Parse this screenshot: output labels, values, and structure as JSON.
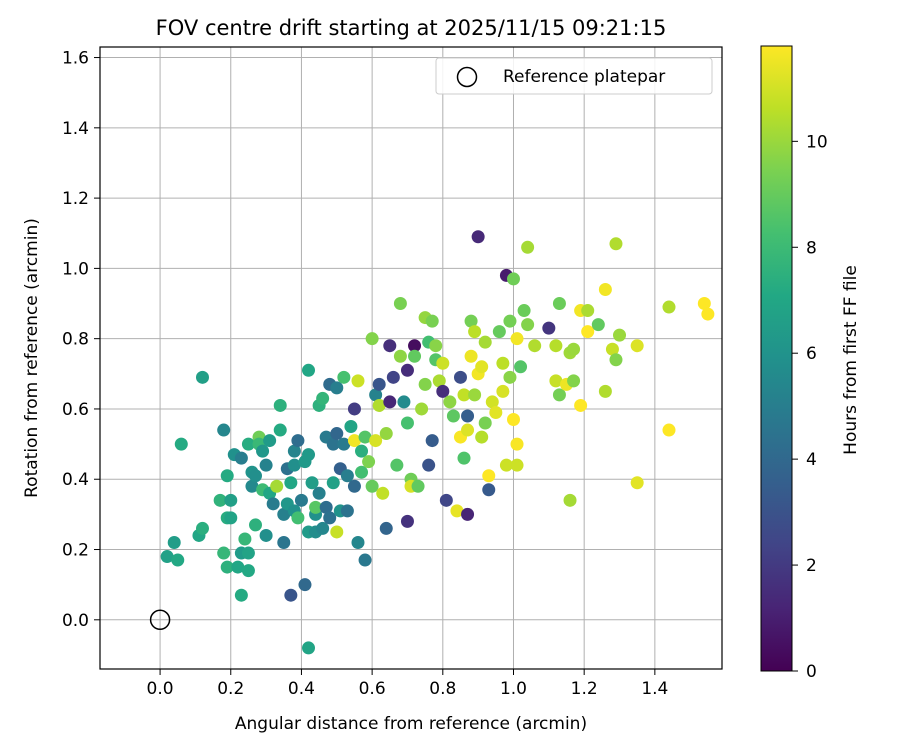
{
  "chart_data": {
    "type": "scatter",
    "title": "FOV centre drift starting at 2025/11/15 09:21:15",
    "xlabel": "Angular distance from reference (arcmin)",
    "ylabel": "Rotation from reference (arcmin)",
    "xlim": [
      -0.17,
      1.59
    ],
    "ylim": [
      -0.14,
      1.63
    ],
    "grid": true,
    "xticks": [
      0.0,
      0.2,
      0.4,
      0.6,
      0.8,
      1.0,
      1.2,
      1.4
    ],
    "xtick_labels": [
      "0.0",
      "0.2",
      "0.4",
      "0.6",
      "0.8",
      "1.0",
      "1.2",
      "1.4"
    ],
    "yticks": [
      0.0,
      0.2,
      0.4,
      0.6,
      0.8,
      1.0,
      1.2,
      1.4,
      1.6
    ],
    "ytick_labels": [
      "0.0",
      "0.2",
      "0.4",
      "0.6",
      "0.8",
      "1.0",
      "1.2",
      "1.4",
      "1.6"
    ],
    "legend": {
      "placement": "top-right",
      "entries": [
        {
          "label": "Reference platepar",
          "marker": "open-circle",
          "color": "#000000"
        }
      ]
    },
    "reference_point": {
      "x": 0.0,
      "y": 0.0
    },
    "colorbar": {
      "label": "Hours from first FF file",
      "colormap": "viridis",
      "range": [
        0,
        11.8
      ],
      "ticks": [
        0,
        2,
        4,
        6,
        8,
        10
      ],
      "tick_labels": [
        "0",
        "2",
        "4",
        "6",
        "8",
        "10"
      ]
    },
    "points": [
      {
        "x": 0.02,
        "y": 0.18,
        "h": 6.7
      },
      {
        "x": 0.04,
        "y": 0.22,
        "h": 6.5
      },
      {
        "x": 0.05,
        "y": 0.17,
        "h": 7.1
      },
      {
        "x": 0.06,
        "y": 0.5,
        "h": 7.2
      },
      {
        "x": 0.12,
        "y": 0.69,
        "h": 6.6
      },
      {
        "x": 0.11,
        "y": 0.24,
        "h": 7.0
      },
      {
        "x": 0.12,
        "y": 0.26,
        "h": 7.4
      },
      {
        "x": 0.17,
        "y": 0.34,
        "h": 7.6
      },
      {
        "x": 0.18,
        "y": 0.19,
        "h": 7.8
      },
      {
        "x": 0.19,
        "y": 0.15,
        "h": 7.5
      },
      {
        "x": 0.19,
        "y": 0.29,
        "h": 7.3
      },
      {
        "x": 0.19,
        "y": 0.41,
        "h": 7.2
      },
      {
        "x": 0.18,
        "y": 0.54,
        "h": 5.4
      },
      {
        "x": 0.2,
        "y": 0.34,
        "h": 6.6
      },
      {
        "x": 0.2,
        "y": 0.29,
        "h": 6.8
      },
      {
        "x": 0.21,
        "y": 0.47,
        "h": 5.9
      },
      {
        "x": 0.22,
        "y": 0.15,
        "h": 7.0
      },
      {
        "x": 0.23,
        "y": 0.46,
        "h": 5.0
      },
      {
        "x": 0.23,
        "y": 0.07,
        "h": 7.2
      },
      {
        "x": 0.23,
        "y": 0.19,
        "h": 6.4
      },
      {
        "x": 0.24,
        "y": 0.23,
        "h": 7.8
      },
      {
        "x": 0.25,
        "y": 0.19,
        "h": 6.8
      },
      {
        "x": 0.25,
        "y": 0.5,
        "h": 7.3
      },
      {
        "x": 0.25,
        "y": 0.14,
        "h": 7.1
      },
      {
        "x": 0.26,
        "y": 0.38,
        "h": 5.5
      },
      {
        "x": 0.26,
        "y": 0.42,
        "h": 6.0
      },
      {
        "x": 0.27,
        "y": 0.27,
        "h": 7.5
      },
      {
        "x": 0.27,
        "y": 0.41,
        "h": 5.8
      },
      {
        "x": 0.28,
        "y": 0.52,
        "h": 9.2
      },
      {
        "x": 0.28,
        "y": 0.5,
        "h": 7.9
      },
      {
        "x": 0.29,
        "y": 0.37,
        "h": 8.0
      },
      {
        "x": 0.29,
        "y": 0.48,
        "h": 6.2
      },
      {
        "x": 0.3,
        "y": 0.24,
        "h": 5.8
      },
      {
        "x": 0.3,
        "y": 0.44,
        "h": 5.2
      },
      {
        "x": 0.31,
        "y": 0.36,
        "h": 7.0
      },
      {
        "x": 0.31,
        "y": 0.51,
        "h": 6.4
      },
      {
        "x": 0.32,
        "y": 0.33,
        "h": 4.9
      },
      {
        "x": 0.33,
        "y": 0.38,
        "h": 10.2
      },
      {
        "x": 0.34,
        "y": 0.61,
        "h": 7.5
      },
      {
        "x": 0.34,
        "y": 0.54,
        "h": 7.2
      },
      {
        "x": 0.35,
        "y": 0.3,
        "h": 5.1
      },
      {
        "x": 0.35,
        "y": 0.22,
        "h": 4.6
      },
      {
        "x": 0.36,
        "y": 0.33,
        "h": 6.2
      },
      {
        "x": 0.36,
        "y": 0.43,
        "h": 4.4
      },
      {
        "x": 0.37,
        "y": 0.07,
        "h": 3.1
      },
      {
        "x": 0.37,
        "y": 0.39,
        "h": 7.0
      },
      {
        "x": 0.38,
        "y": 0.48,
        "h": 5.3
      },
      {
        "x": 0.38,
        "y": 0.44,
        "h": 5.8
      },
      {
        "x": 0.38,
        "y": 0.31,
        "h": 5.9
      },
      {
        "x": 0.39,
        "y": 0.29,
        "h": 8.2
      },
      {
        "x": 0.39,
        "y": 0.51,
        "h": 4.2
      },
      {
        "x": 0.4,
        "y": 0.34,
        "h": 4.8
      },
      {
        "x": 0.41,
        "y": 0.1,
        "h": 4.0
      },
      {
        "x": 0.41,
        "y": 0.45,
        "h": 6.3
      },
      {
        "x": 0.42,
        "y": -0.08,
        "h": 6.9
      },
      {
        "x": 0.42,
        "y": 0.47,
        "h": 6.3
      },
      {
        "x": 0.42,
        "y": 0.25,
        "h": 6.4
      },
      {
        "x": 0.42,
        "y": 0.71,
        "h": 7.0
      },
      {
        "x": 0.43,
        "y": 0.39,
        "h": 6.5
      },
      {
        "x": 0.44,
        "y": 0.25,
        "h": 5.7
      },
      {
        "x": 0.44,
        "y": 0.3,
        "h": 5.9
      },
      {
        "x": 0.44,
        "y": 0.32,
        "h": 8.7
      },
      {
        "x": 0.45,
        "y": 0.36,
        "h": 5.1
      },
      {
        "x": 0.45,
        "y": 0.61,
        "h": 7.5
      },
      {
        "x": 0.46,
        "y": 0.26,
        "h": 5.4
      },
      {
        "x": 0.46,
        "y": 0.63,
        "h": 7.7
      },
      {
        "x": 0.47,
        "y": 0.32,
        "h": 4.2
      },
      {
        "x": 0.47,
        "y": 0.52,
        "h": 4.8
      },
      {
        "x": 0.48,
        "y": 0.29,
        "h": 4.4
      },
      {
        "x": 0.48,
        "y": 0.67,
        "h": 4.1
      },
      {
        "x": 0.49,
        "y": 0.5,
        "h": 4.5
      },
      {
        "x": 0.49,
        "y": 0.39,
        "h": 6.7
      },
      {
        "x": 0.5,
        "y": 0.53,
        "h": 3.9
      },
      {
        "x": 0.5,
        "y": 0.66,
        "h": 5.0
      },
      {
        "x": 0.5,
        "y": 0.25,
        "h": 10.8
      },
      {
        "x": 0.51,
        "y": 0.31,
        "h": 6.0
      },
      {
        "x": 0.51,
        "y": 0.43,
        "h": 3.6
      },
      {
        "x": 0.52,
        "y": 0.5,
        "h": 4.8
      },
      {
        "x": 0.52,
        "y": 0.69,
        "h": 8.3
      },
      {
        "x": 0.53,
        "y": 0.41,
        "h": 5.0
      },
      {
        "x": 0.53,
        "y": 0.31,
        "h": 4.5
      },
      {
        "x": 0.54,
        "y": 0.55,
        "h": 6.9
      },
      {
        "x": 0.55,
        "y": 0.51,
        "h": 11.6
      },
      {
        "x": 0.55,
        "y": 0.38,
        "h": 4.0
      },
      {
        "x": 0.55,
        "y": 0.6,
        "h": 2.1
      },
      {
        "x": 0.56,
        "y": 0.68,
        "h": 10.9
      },
      {
        "x": 0.56,
        "y": 0.22,
        "h": 5.4
      },
      {
        "x": 0.57,
        "y": 0.42,
        "h": 8.2
      },
      {
        "x": 0.57,
        "y": 0.48,
        "h": 7.4
      },
      {
        "x": 0.58,
        "y": 0.17,
        "h": 4.7
      },
      {
        "x": 0.58,
        "y": 0.52,
        "h": 8.6
      },
      {
        "x": 0.59,
        "y": 0.45,
        "h": 9.5
      },
      {
        "x": 0.6,
        "y": 0.38,
        "h": 9.0
      },
      {
        "x": 0.6,
        "y": 0.8,
        "h": 9.6
      },
      {
        "x": 0.61,
        "y": 0.51,
        "h": 11.1
      },
      {
        "x": 0.61,
        "y": 0.64,
        "h": 5.2
      },
      {
        "x": 0.62,
        "y": 0.61,
        "h": 10.4
      },
      {
        "x": 0.62,
        "y": 0.67,
        "h": 3.1
      },
      {
        "x": 0.63,
        "y": 0.36,
        "h": 10.7
      },
      {
        "x": 0.64,
        "y": 0.26,
        "h": 3.8
      },
      {
        "x": 0.64,
        "y": 0.53,
        "h": 9.9
      },
      {
        "x": 0.65,
        "y": 0.62,
        "h": 1.3
      },
      {
        "x": 0.65,
        "y": 0.78,
        "h": 1.6
      },
      {
        "x": 0.66,
        "y": 0.69,
        "h": 2.4
      },
      {
        "x": 0.67,
        "y": 0.44,
        "h": 8.6
      },
      {
        "x": 0.68,
        "y": 0.75,
        "h": 9.8
      },
      {
        "x": 0.68,
        "y": 0.9,
        "h": 9.4
      },
      {
        "x": 0.69,
        "y": 0.62,
        "h": 5.6
      },
      {
        "x": 0.7,
        "y": 0.28,
        "h": 1.7
      },
      {
        "x": 0.7,
        "y": 0.56,
        "h": 8.3
      },
      {
        "x": 0.7,
        "y": 0.71,
        "h": 1.5
      },
      {
        "x": 0.71,
        "y": 0.4,
        "h": 9.2
      },
      {
        "x": 0.71,
        "y": 0.38,
        "h": 11.1
      },
      {
        "x": 0.72,
        "y": 0.78,
        "h": 0.4
      },
      {
        "x": 0.72,
        "y": 0.75,
        "h": 8.9
      },
      {
        "x": 0.73,
        "y": 0.38,
        "h": 8.9
      },
      {
        "x": 0.74,
        "y": 0.6,
        "h": 10.1
      },
      {
        "x": 0.75,
        "y": 0.86,
        "h": 9.9
      },
      {
        "x": 0.75,
        "y": 0.67,
        "h": 9.6
      },
      {
        "x": 0.76,
        "y": 0.79,
        "h": 8.2
      },
      {
        "x": 0.76,
        "y": 0.44,
        "h": 3.0
      },
      {
        "x": 0.77,
        "y": 0.85,
        "h": 9.4
      },
      {
        "x": 0.77,
        "y": 0.51,
        "h": 3.4
      },
      {
        "x": 0.78,
        "y": 0.74,
        "h": 8.6
      },
      {
        "x": 0.78,
        "y": 0.78,
        "h": 9.7
      },
      {
        "x": 0.79,
        "y": 0.68,
        "h": 10.3
      },
      {
        "x": 0.8,
        "y": 0.73,
        "h": 10.9
      },
      {
        "x": 0.8,
        "y": 0.65,
        "h": 1.6
      },
      {
        "x": 0.81,
        "y": 0.34,
        "h": 2.5
      },
      {
        "x": 0.82,
        "y": 0.62,
        "h": 9.8
      },
      {
        "x": 0.83,
        "y": 0.58,
        "h": 8.8
      },
      {
        "x": 0.84,
        "y": 0.31,
        "h": 11.4
      },
      {
        "x": 0.85,
        "y": 0.52,
        "h": 11.7
      },
      {
        "x": 0.85,
        "y": 0.69,
        "h": 2.8
      },
      {
        "x": 0.86,
        "y": 0.64,
        "h": 10.7
      },
      {
        "x": 0.86,
        "y": 0.46,
        "h": 8.5
      },
      {
        "x": 0.87,
        "y": 0.54,
        "h": 11.2
      },
      {
        "x": 0.87,
        "y": 0.3,
        "h": 1.2
      },
      {
        "x": 0.87,
        "y": 0.58,
        "h": 3.5
      },
      {
        "x": 0.88,
        "y": 0.85,
        "h": 9.3
      },
      {
        "x": 0.88,
        "y": 0.75,
        "h": 11.5
      },
      {
        "x": 0.89,
        "y": 0.82,
        "h": 10.6
      },
      {
        "x": 0.89,
        "y": 0.64,
        "h": 10.0
      },
      {
        "x": 0.9,
        "y": 1.09,
        "h": 1.4
      },
      {
        "x": 0.9,
        "y": 0.7,
        "h": 11.6
      },
      {
        "x": 0.91,
        "y": 0.72,
        "h": 11.3
      },
      {
        "x": 0.91,
        "y": 0.52,
        "h": 10.5
      },
      {
        "x": 0.92,
        "y": 0.79,
        "h": 10.2
      },
      {
        "x": 0.92,
        "y": 0.56,
        "h": 9.4
      },
      {
        "x": 0.93,
        "y": 0.41,
        "h": 11.8
      },
      {
        "x": 0.93,
        "y": 0.37,
        "h": 3.3
      },
      {
        "x": 0.94,
        "y": 0.62,
        "h": 11.0
      },
      {
        "x": 0.95,
        "y": 0.59,
        "h": 11.3
      },
      {
        "x": 0.96,
        "y": 0.82,
        "h": 9.0
      },
      {
        "x": 0.97,
        "y": 0.65,
        "h": 11.1
      },
      {
        "x": 0.97,
        "y": 0.73,
        "h": 10.6
      },
      {
        "x": 0.98,
        "y": 0.98,
        "h": 0.9
      },
      {
        "x": 0.98,
        "y": 0.44,
        "h": 10.9
      },
      {
        "x": 0.99,
        "y": 0.85,
        "h": 9.3
      },
      {
        "x": 0.99,
        "y": 0.69,
        "h": 9.7
      },
      {
        "x": 1.0,
        "y": 0.97,
        "h": 9.2
      },
      {
        "x": 1.0,
        "y": 0.57,
        "h": 11.8
      },
      {
        "x": 1.01,
        "y": 0.8,
        "h": 11.6
      },
      {
        "x": 1.01,
        "y": 0.44,
        "h": 10.9
      },
      {
        "x": 1.01,
        "y": 0.5,
        "h": 11.7
      },
      {
        "x": 1.02,
        "y": 0.72,
        "h": 8.6
      },
      {
        "x": 1.03,
        "y": 0.88,
        "h": 9.1
      },
      {
        "x": 1.04,
        "y": 1.06,
        "h": 10.2
      },
      {
        "x": 1.04,
        "y": 0.84,
        "h": 9.6
      },
      {
        "x": 1.06,
        "y": 0.78,
        "h": 10.4
      },
      {
        "x": 1.1,
        "y": 0.83,
        "h": 1.8
      },
      {
        "x": 1.12,
        "y": 0.68,
        "h": 10.8
      },
      {
        "x": 1.12,
        "y": 0.78,
        "h": 10.5
      },
      {
        "x": 1.13,
        "y": 0.9,
        "h": 9.1
      },
      {
        "x": 1.13,
        "y": 0.64,
        "h": 9.3
      },
      {
        "x": 1.15,
        "y": 0.67,
        "h": 11.5
      },
      {
        "x": 1.16,
        "y": 0.76,
        "h": 10.1
      },
      {
        "x": 1.16,
        "y": 0.34,
        "h": 10.2
      },
      {
        "x": 1.17,
        "y": 0.77,
        "h": 10.0
      },
      {
        "x": 1.17,
        "y": 0.68,
        "h": 9.6
      },
      {
        "x": 1.19,
        "y": 0.88,
        "h": 11.6
      },
      {
        "x": 1.19,
        "y": 0.61,
        "h": 11.9
      },
      {
        "x": 1.21,
        "y": 0.82,
        "h": 11.8
      },
      {
        "x": 1.21,
        "y": 0.88,
        "h": 10.3
      },
      {
        "x": 1.24,
        "y": 0.84,
        "h": 8.9
      },
      {
        "x": 1.26,
        "y": 0.65,
        "h": 10.4
      },
      {
        "x": 1.26,
        "y": 0.94,
        "h": 11.6
      },
      {
        "x": 1.28,
        "y": 0.77,
        "h": 10.8
      },
      {
        "x": 1.29,
        "y": 0.74,
        "h": 9.6
      },
      {
        "x": 1.29,
        "y": 1.07,
        "h": 10.4
      },
      {
        "x": 1.3,
        "y": 0.81,
        "h": 10.0
      },
      {
        "x": 1.35,
        "y": 0.78,
        "h": 11.2
      },
      {
        "x": 1.35,
        "y": 0.39,
        "h": 11.3
      },
      {
        "x": 1.44,
        "y": 0.89,
        "h": 10.4
      },
      {
        "x": 1.44,
        "y": 0.54,
        "h": 11.8
      },
      {
        "x": 1.54,
        "y": 0.9,
        "h": 11.8
      },
      {
        "x": 1.55,
        "y": 0.87,
        "h": 11.9
      }
    ]
  }
}
